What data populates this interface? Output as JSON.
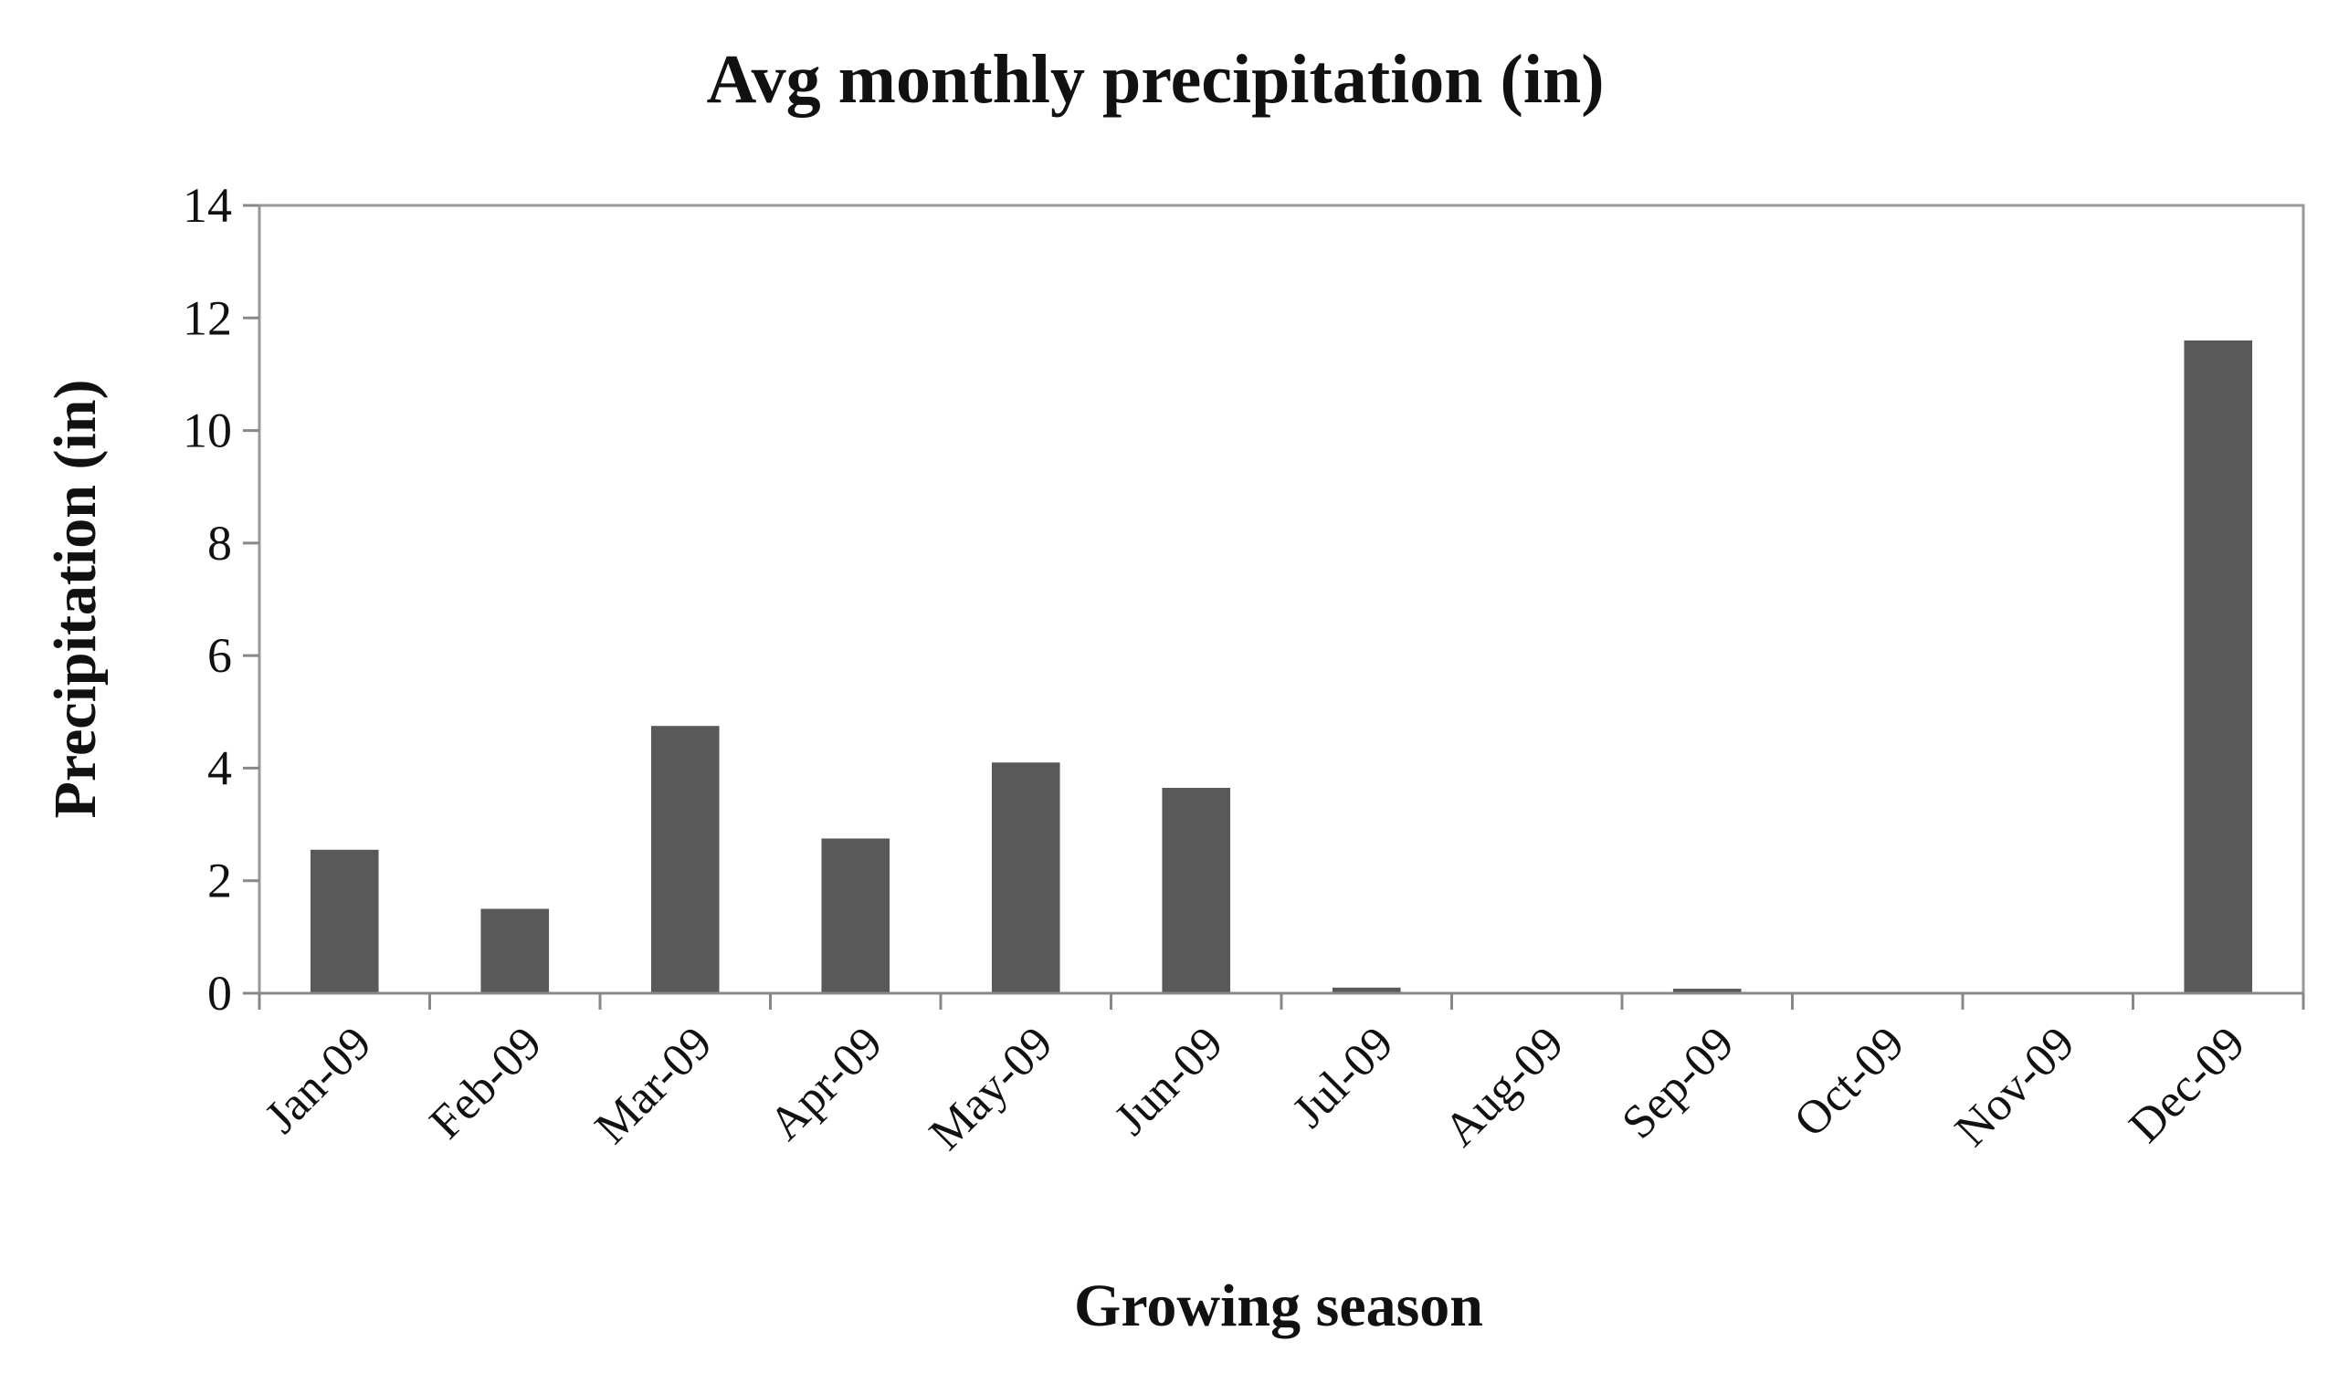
{
  "chart_data": {
    "type": "bar",
    "title": "Avg monthly  precipitation (in)",
    "xlabel": "Growing season",
    "ylabel": "Precipitation (in)",
    "categories": [
      "Jan-09",
      "Feb-09",
      "Mar-09",
      "Apr-09",
      "May-09",
      "Jun-09",
      "Jul-09",
      "Aug-09",
      "Sep-09",
      "Oct-09",
      "Nov-09",
      "Dec-09"
    ],
    "series": [
      {
        "name": "Avg monthly precipitation",
        "values": [
          2.55,
          1.5,
          4.75,
          2.75,
          4.1,
          3.65,
          0.1,
          0.0,
          0.08,
          0.0,
          0.0,
          11.6
        ]
      }
    ],
    "ylim": [
      0,
      14
    ],
    "yticks": [
      "0",
      "2",
      "4",
      "6",
      "8",
      "10",
      "12",
      "14"
    ],
    "grid": false,
    "legend": "none",
    "bar_color": "#595959",
    "axis_color": "#888888"
  }
}
